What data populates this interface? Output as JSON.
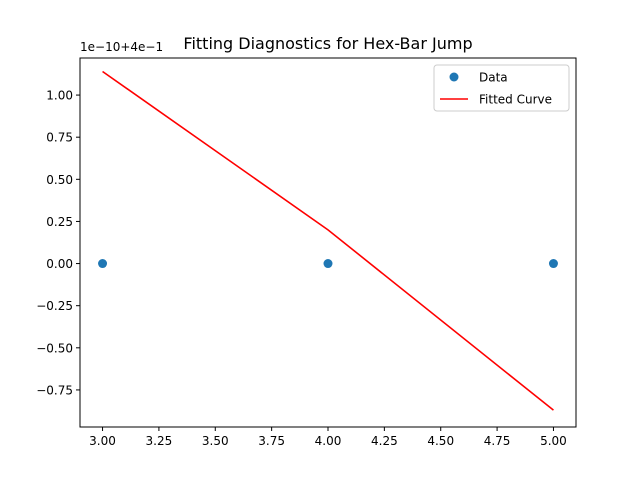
{
  "chart_data": {
    "type": "scatter",
    "title": "Fitting Diagnostics for Hex-Bar Jump",
    "offset_label": "1e−10+4e−1",
    "xlabel": "",
    "ylabel": "",
    "xlim": [
      2.9,
      5.1
    ],
    "ylim": [
      -0.97,
      1.22
    ],
    "x_ticks": [
      3.0,
      3.25,
      3.5,
      3.75,
      4.0,
      4.25,
      4.5,
      4.75,
      5.0
    ],
    "x_tick_labels": [
      "3.00",
      "3.25",
      "3.50",
      "3.75",
      "4.00",
      "4.25",
      "4.50",
      "4.75",
      "5.00"
    ],
    "y_ticks": [
      1.0,
      0.75,
      0.5,
      0.25,
      0.0,
      -0.25,
      -0.5,
      -0.75
    ],
    "y_tick_labels": [
      "1.00",
      "0.75",
      "0.50",
      "0.25",
      "0.00",
      "−0.25",
      "−0.50",
      "−0.75"
    ],
    "grid": false,
    "legend_position": "top-right",
    "series": [
      {
        "name": "Data",
        "kind": "scatter",
        "color": "#1f77b4",
        "x": [
          3.0,
          4.0,
          5.0
        ],
        "y": [
          0.0,
          0.0,
          0.0
        ]
      },
      {
        "name": "Fitted Curve",
        "kind": "line",
        "color": "#ff0000",
        "x": [
          3.0,
          4.0,
          5.0
        ],
        "y": [
          1.14,
          0.2,
          -0.87
        ]
      }
    ]
  }
}
